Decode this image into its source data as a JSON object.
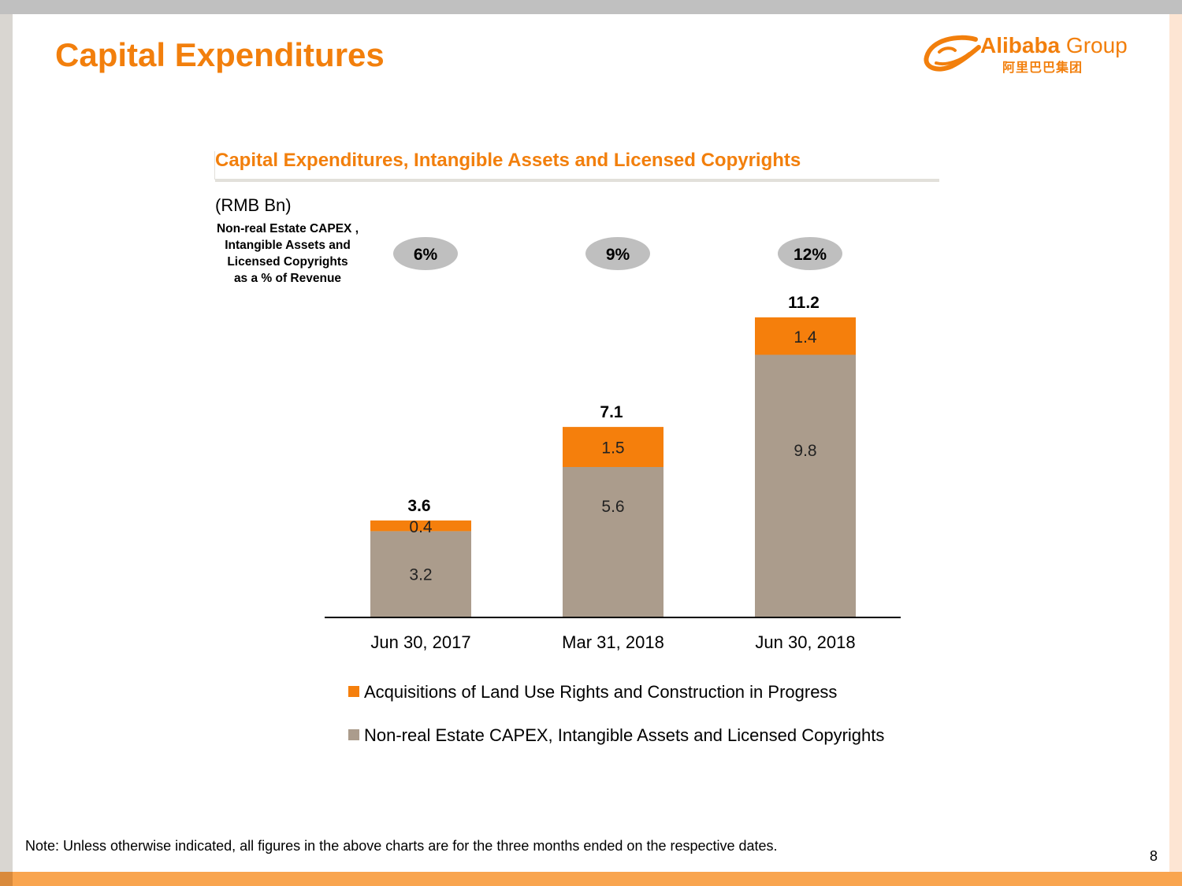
{
  "page": {
    "title": "Capital Expenditures",
    "note": "Note: Unless otherwise indicated, all figures in the above charts are for the three months ended on the respective dates.",
    "page_number": "8"
  },
  "logo": {
    "name": "Alibaba",
    "suffix": "Group",
    "chinese": "阿里巴巴集团"
  },
  "colors": {
    "accent": "#f27f0c",
    "series_acquisitions": "#f57f0c",
    "series_non_real_estate": "#ab9c8c",
    "pill": "#bfbfbf"
  },
  "chart_data": {
    "type": "bar",
    "stacked": true,
    "title": "Capital Expenditures, Intangible Assets and Licensed Copyrights",
    "unit_label": "(RMB Bn)",
    "categories": [
      "Jun 30, 2017",
      "Mar 31, 2018",
      "Jun 30, 2018"
    ],
    "series": [
      {
        "name": "Non-real Estate CAPEX, Intangible Assets and Licensed Copyrights",
        "values": [
          3.2,
          5.6,
          9.8
        ]
      },
      {
        "name": "Acquisitions of Land Use Rights and Construction in Progress",
        "values": [
          0.4,
          1.5,
          1.4
        ]
      }
    ],
    "value_labels": {
      "series_0": [
        "3.2",
        "5.6",
        "9.8"
      ],
      "series_1": [
        "0.4",
        "1.5",
        "1.4"
      ]
    },
    "totals": [
      "3.6",
      "7.1",
      "11.2"
    ],
    "percent_of_revenue": {
      "caption_lines": [
        "Non-real Estate CAPEX ,",
        "Intangible Assets and",
        "Licensed Copyrights",
        "as a % of Revenue"
      ],
      "values": [
        "6%",
        "9%",
        "12%"
      ]
    },
    "ylim": [
      0,
      11.5
    ],
    "legend": [
      {
        "label": "Acquisitions of Land Use Rights and Construction in Progress",
        "series": 1
      },
      {
        "label": "Non-real Estate CAPEX, Intangible Assets and Licensed Copyrights",
        "series": 0
      }
    ],
    "xlabel": "",
    "ylabel": "",
    "grid": false
  }
}
